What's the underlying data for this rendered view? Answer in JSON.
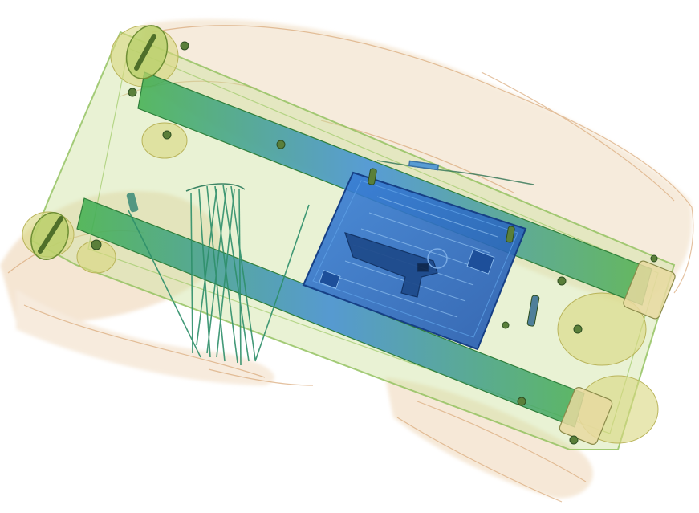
{
  "image": {
    "kind": "x-ray baggage scan",
    "colors": {
      "background": "#ffffff",
      "organic_tint": "#e9c9a2",
      "organic_edge": "#d9a878",
      "shell_tint": "#cfe3a0",
      "shell_edge": "#8fbf5a",
      "rail_green": "#3fae4e",
      "rail_blue": "#3f8fd8",
      "device_blue": "#2f6fc8",
      "device_dark": "#1d4f9a",
      "wire": "#2e8f6a",
      "hardware": "#5a7f3a"
    },
    "objects": [
      {
        "name": "suitcase-shell"
      },
      {
        "name": "trolley-rail"
      },
      {
        "name": "electronic-device"
      },
      {
        "name": "handgun"
      },
      {
        "name": "umbrella-ribs"
      },
      {
        "name": "wheel"
      }
    ]
  }
}
